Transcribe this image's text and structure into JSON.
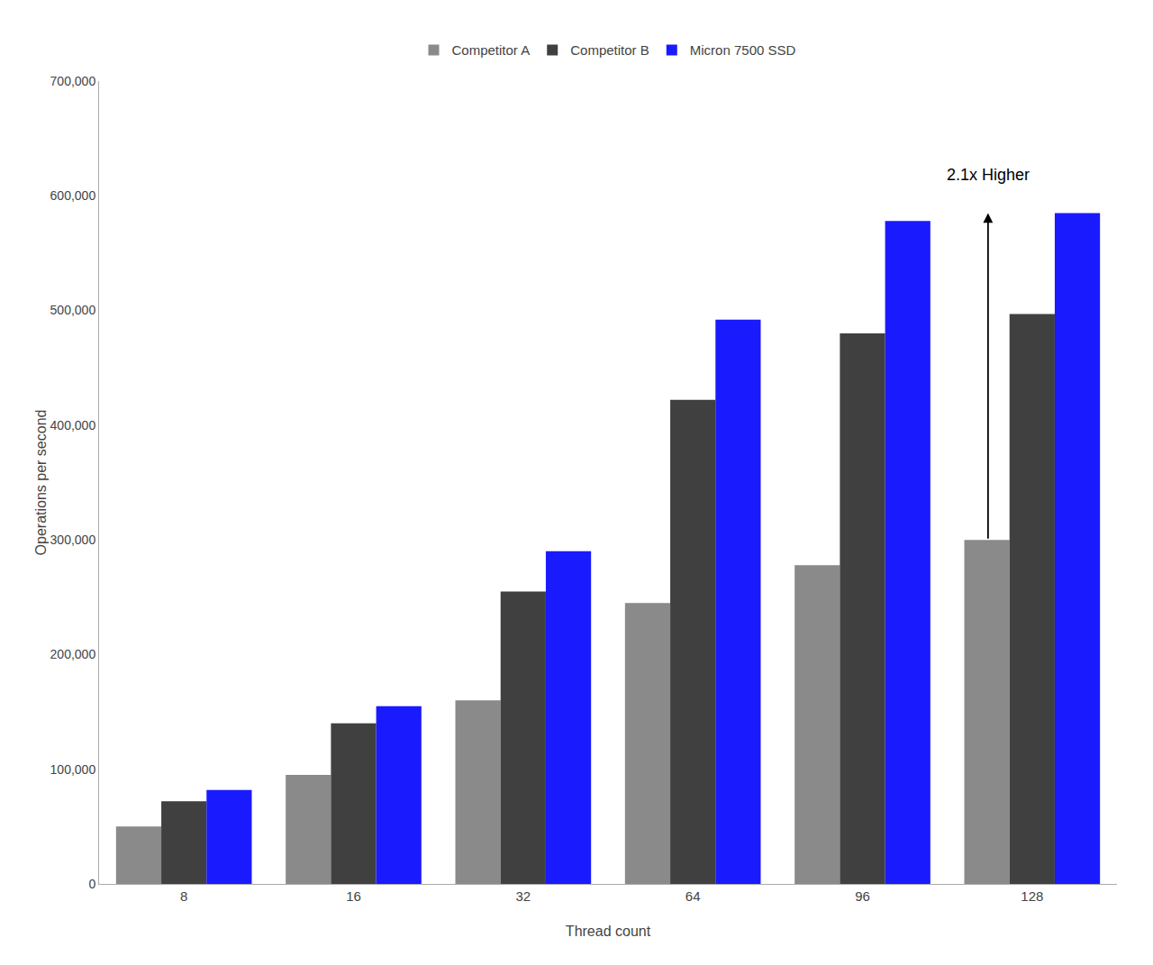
{
  "chart_data": {
    "type": "bar",
    "xlabel": "Thread count",
    "ylabel": "Operations per second",
    "categories": [
      8,
      16,
      32,
      64,
      96,
      128
    ],
    "series": [
      {
        "name": "Competitor A",
        "color": "#8a8a8a",
        "values": [
          50000,
          95000,
          160000,
          245000,
          278000,
          300000
        ]
      },
      {
        "name": "Competitor B",
        "color": "#404040",
        "values": [
          72000,
          140000,
          255000,
          422000,
          480000,
          497000
        ]
      },
      {
        "name": "Micron 7500 SSD",
        "color": "#1a1aff",
        "values": [
          82000,
          155000,
          290000,
          492000,
          578000,
          585000
        ]
      }
    ],
    "ylim": [
      0,
      700000
    ],
    "yticks": [
      0,
      {
        "value": 100000,
        "label": "100,000"
      },
      {
        "value": 200000,
        "label": "200,000"
      },
      {
        "value": 300000,
        "label": "300,000"
      },
      {
        "value": 400000,
        "label": "400,000"
      },
      {
        "value": 500000,
        "label": "500,000"
      },
      {
        "value": 600000,
        "label": "600,000"
      },
      {
        "value": 700000,
        "label": "700,000"
      }
    ],
    "annotation": "2.1x Higher",
    "grid": false,
    "legend": "top"
  }
}
